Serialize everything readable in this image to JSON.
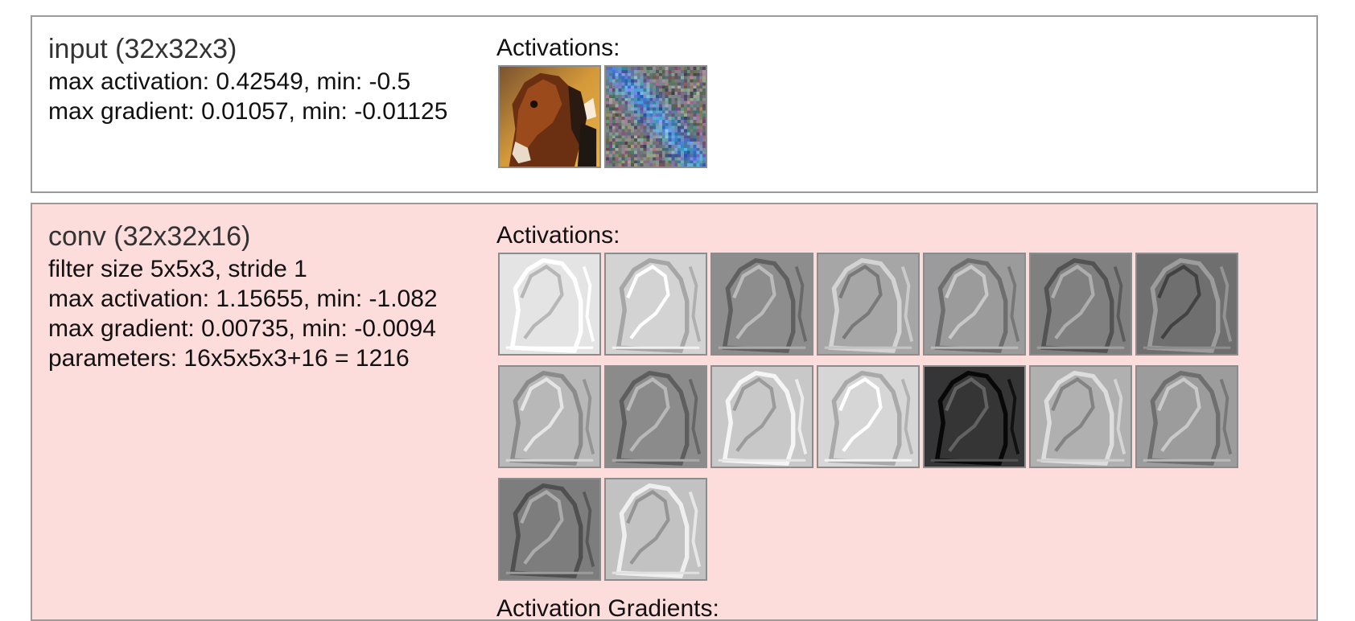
{
  "layers": [
    {
      "title": "input (32x32x3)",
      "stats": [
        "max activation: 0.42549, min: -0.5",
        "max gradient: 0.01057, min: -0.01125"
      ],
      "activations_label": "Activations:",
      "thumbnails": [
        {
          "kind": "color-image",
          "name": "horse-image"
        },
        {
          "kind": "noise-gradient",
          "name": "gradient-noise-image"
        }
      ]
    },
    {
      "title": "conv (32x32x16)",
      "stats": [
        "filter size 5x5x3, stride 1",
        "max activation: 1.15655, min: -1.082",
        "max gradient: 0.00735, min: -0.0094",
        "parameters: 16x5x5x3+16 = 1216"
      ],
      "activations_label": "Activations:",
      "activation_gradients_label": "Activation Gradients:",
      "feature_map_tones": [
        "#e4e4e4",
        "#d3d3d3",
        "#8d8d8d",
        "#a6a6a6",
        "#9b9b9b",
        "#808080",
        "#6f6f6f",
        "#b8b8b8",
        "#8b8b8b",
        "#c8c8c8",
        "#d6d6d6",
        "#353535",
        "#b0b0b0",
        "#9c9c9c",
        "#7d7d7d",
        "#c2c2c2"
      ]
    }
  ]
}
